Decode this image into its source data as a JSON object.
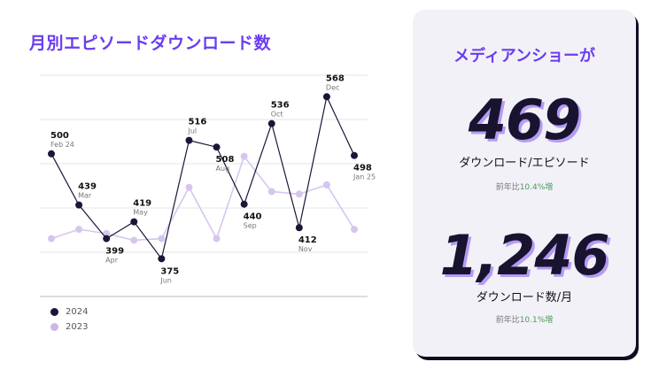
{
  "title": "月別エピソードダウンロード数",
  "chart_data": {
    "type": "line",
    "categories": [
      "Feb 24",
      "Mar",
      "Apr",
      "May",
      "Jun",
      "Jul",
      "Aug",
      "Sep",
      "Oct",
      "Nov",
      "Dec",
      "Jan 25"
    ],
    "series": [
      {
        "name": "2024",
        "values": [
          500,
          439,
          399,
          419,
          375,
          516,
          508,
          440,
          536,
          412,
          568,
          498
        ],
        "color": "#1b1638"
      },
      {
        "name": "2023",
        "values": [
          399,
          410,
          405,
          397,
          399,
          460,
          399,
          497,
          455,
          452,
          463,
          410
        ],
        "color": "#d6c6ee"
      }
    ],
    "ylim": [
      330,
      620
    ],
    "grid": true,
    "legend": "bottom-left"
  },
  "legend": [
    {
      "label": "2024",
      "color": "#1b1638"
    },
    {
      "label": "2023",
      "color": "#cbb8e6"
    }
  ],
  "card": {
    "title": "メディアンショーが",
    "stat1": {
      "value": "469",
      "label": "ダウンロード/エピソード",
      "growth_prefix": "前年比",
      "growth_value": "10.4%増"
    },
    "stat2": {
      "value": "1,246",
      "label": "ダウンロード数/月",
      "growth_prefix": "前年比",
      "growth_value": "10.1%増"
    }
  }
}
